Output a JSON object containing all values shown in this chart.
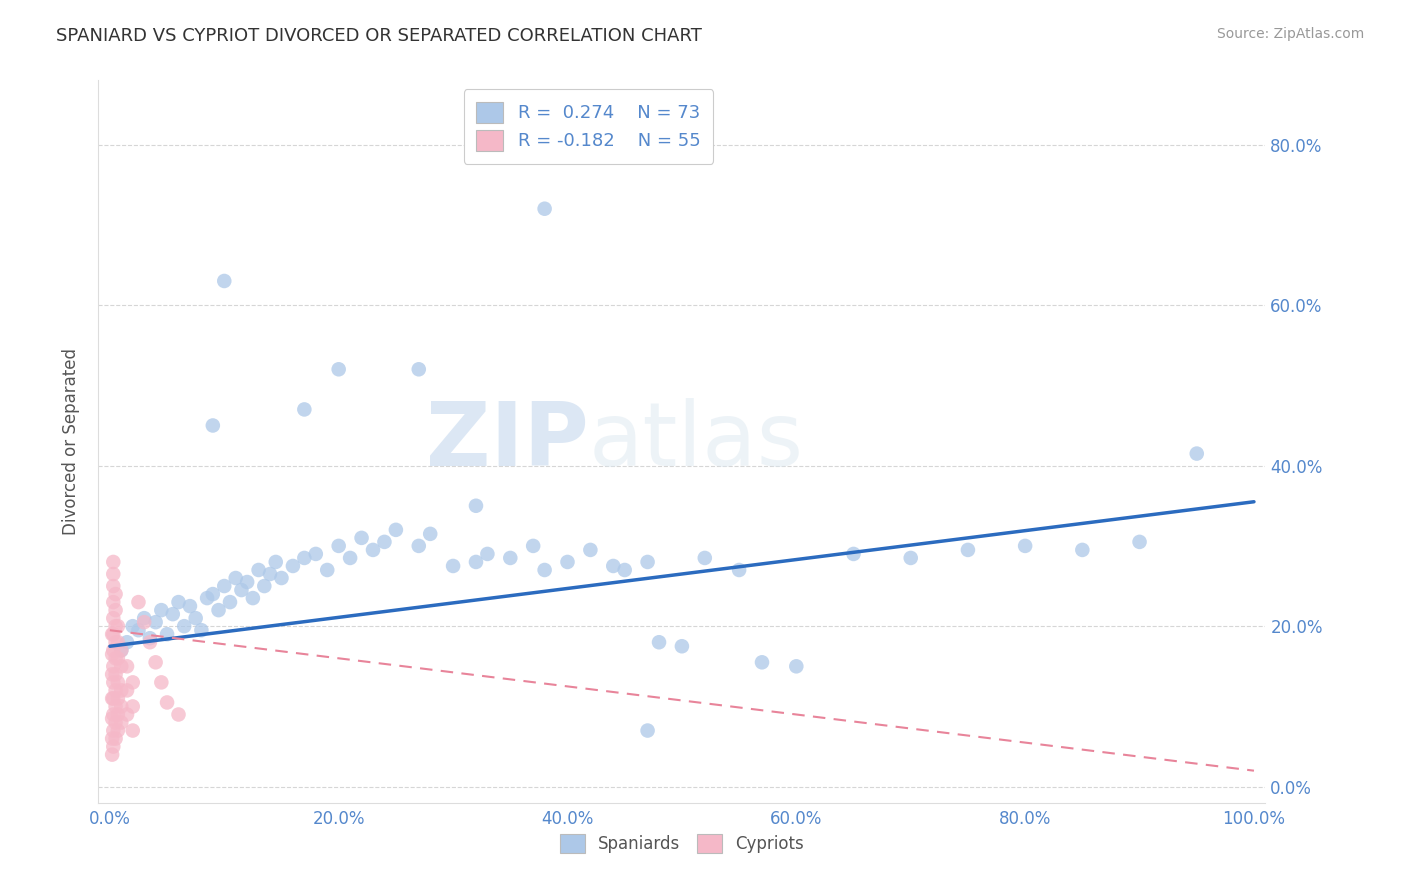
{
  "title": "SPANIARD VS CYPRIOT DIVORCED OR SEPARATED CORRELATION CHART",
  "source": "Source: ZipAtlas.com",
  "ylabel": "Divorced or Separated",
  "legend_labels": [
    "Spaniards",
    "Cypriots"
  ],
  "blue_R": 0.274,
  "blue_N": 73,
  "pink_R": -0.182,
  "pink_N": 55,
  "blue_color": "#adc8e8",
  "pink_color": "#f5b8c8",
  "blue_line_color": "#2b6bbf",
  "pink_line_color": "#e8849a",
  "blue_scatter": [
    [
      1.5,
      18.0
    ],
    [
      2.0,
      20.0
    ],
    [
      2.5,
      19.5
    ],
    [
      3.0,
      21.0
    ],
    [
      3.5,
      18.5
    ],
    [
      4.0,
      20.5
    ],
    [
      4.5,
      22.0
    ],
    [
      5.0,
      19.0
    ],
    [
      5.5,
      21.5
    ],
    [
      6.0,
      23.0
    ],
    [
      6.5,
      20.0
    ],
    [
      7.0,
      22.5
    ],
    [
      7.5,
      21.0
    ],
    [
      8.0,
      19.5
    ],
    [
      8.5,
      23.5
    ],
    [
      9.0,
      24.0
    ],
    [
      9.5,
      22.0
    ],
    [
      10.0,
      25.0
    ],
    [
      10.5,
      23.0
    ],
    [
      11.0,
      26.0
    ],
    [
      11.5,
      24.5
    ],
    [
      12.0,
      25.5
    ],
    [
      12.5,
      23.5
    ],
    [
      13.0,
      27.0
    ],
    [
      13.5,
      25.0
    ],
    [
      14.0,
      26.5
    ],
    [
      14.5,
      28.0
    ],
    [
      15.0,
      26.0
    ],
    [
      16.0,
      27.5
    ],
    [
      17.0,
      28.5
    ],
    [
      18.0,
      29.0
    ],
    [
      19.0,
      27.0
    ],
    [
      20.0,
      30.0
    ],
    [
      21.0,
      28.5
    ],
    [
      22.0,
      31.0
    ],
    [
      23.0,
      29.5
    ],
    [
      24.0,
      30.5
    ],
    [
      25.0,
      32.0
    ],
    [
      27.0,
      30.0
    ],
    [
      28.0,
      31.5
    ],
    [
      30.0,
      27.5
    ],
    [
      32.0,
      28.0
    ],
    [
      33.0,
      29.0
    ],
    [
      35.0,
      28.5
    ],
    [
      37.0,
      30.0
    ],
    [
      38.0,
      27.0
    ],
    [
      40.0,
      28.0
    ],
    [
      42.0,
      29.5
    ],
    [
      44.0,
      27.5
    ],
    [
      45.0,
      27.0
    ],
    [
      47.0,
      28.0
    ],
    [
      48.0,
      18.0
    ],
    [
      50.0,
      17.5
    ],
    [
      52.0,
      28.5
    ],
    [
      55.0,
      27.0
    ],
    [
      57.0,
      15.5
    ],
    [
      60.0,
      15.0
    ],
    [
      65.0,
      29.0
    ],
    [
      70.0,
      28.5
    ],
    [
      75.0,
      29.5
    ],
    [
      80.0,
      30.0
    ],
    [
      85.0,
      29.5
    ],
    [
      90.0,
      30.5
    ],
    [
      95.0,
      41.5
    ],
    [
      9.0,
      45.0
    ],
    [
      17.0,
      47.0
    ],
    [
      20.0,
      52.0
    ],
    [
      27.0,
      52.0
    ],
    [
      32.0,
      35.0
    ],
    [
      47.0,
      7.0
    ],
    [
      10.0,
      63.0
    ],
    [
      38.0,
      72.0
    ],
    [
      1.0,
      17.0
    ]
  ],
  "pink_scatter": [
    [
      0.3,
      5.0
    ],
    [
      0.3,
      7.0
    ],
    [
      0.3,
      9.0
    ],
    [
      0.3,
      11.0
    ],
    [
      0.3,
      13.0
    ],
    [
      0.3,
      15.0
    ],
    [
      0.3,
      17.0
    ],
    [
      0.3,
      19.0
    ],
    [
      0.3,
      21.0
    ],
    [
      0.3,
      23.0
    ],
    [
      0.3,
      25.0
    ],
    [
      0.3,
      26.5
    ],
    [
      0.3,
      28.0
    ],
    [
      0.5,
      6.0
    ],
    [
      0.5,
      8.0
    ],
    [
      0.5,
      10.0
    ],
    [
      0.5,
      12.0
    ],
    [
      0.5,
      14.0
    ],
    [
      0.5,
      16.0
    ],
    [
      0.5,
      18.0
    ],
    [
      0.5,
      20.0
    ],
    [
      0.5,
      22.0
    ],
    [
      0.5,
      24.0
    ],
    [
      0.7,
      7.0
    ],
    [
      0.7,
      9.0
    ],
    [
      0.7,
      11.0
    ],
    [
      0.7,
      13.0
    ],
    [
      0.7,
      16.0
    ],
    [
      0.7,
      18.0
    ],
    [
      0.7,
      20.0
    ],
    [
      1.0,
      8.0
    ],
    [
      1.0,
      10.0
    ],
    [
      1.0,
      12.0
    ],
    [
      1.0,
      15.0
    ],
    [
      1.0,
      17.0
    ],
    [
      1.5,
      9.0
    ],
    [
      1.5,
      12.0
    ],
    [
      1.5,
      15.0
    ],
    [
      2.0,
      7.0
    ],
    [
      2.0,
      10.0
    ],
    [
      2.0,
      13.0
    ],
    [
      2.5,
      23.0
    ],
    [
      3.0,
      20.5
    ],
    [
      3.5,
      18.0
    ],
    [
      4.0,
      15.5
    ],
    [
      4.5,
      13.0
    ],
    [
      5.0,
      10.5
    ],
    [
      6.0,
      9.0
    ],
    [
      0.2,
      4.0
    ],
    [
      0.2,
      6.0
    ],
    [
      0.2,
      8.5
    ],
    [
      0.2,
      11.0
    ],
    [
      0.2,
      14.0
    ],
    [
      0.2,
      16.5
    ],
    [
      0.2,
      19.0
    ]
  ],
  "xlim": [
    -1.0,
    101.0
  ],
  "ylim": [
    -2.0,
    88.0
  ],
  "xticks": [
    0,
    20,
    40,
    60,
    80,
    100
  ],
  "yticks": [
    0,
    20,
    40,
    60,
    80
  ],
  "xticklabels": [
    "0.0%",
    "20.0%",
    "40.0%",
    "60.0%",
    "80.0%",
    "100.0%"
  ],
  "yticklabels_left": [
    "",
    "",
    "",
    "",
    ""
  ],
  "yticklabels_right": [
    "0.0%",
    "20.0%",
    "40.0%",
    "60.0%",
    "80.0%"
  ],
  "blue_line_x": [
    0,
    100
  ],
  "blue_line_y": [
    17.5,
    35.5
  ],
  "pink_line_x": [
    0,
    100
  ],
  "pink_line_y": [
    19.5,
    2.0
  ],
  "watermark_zip": "ZIP",
  "watermark_atlas": "atlas",
  "background_color": "#ffffff",
  "grid_color": "#cccccc",
  "tick_color": "#5588cc",
  "title_color": "#333333",
  "source_color": "#999999"
}
